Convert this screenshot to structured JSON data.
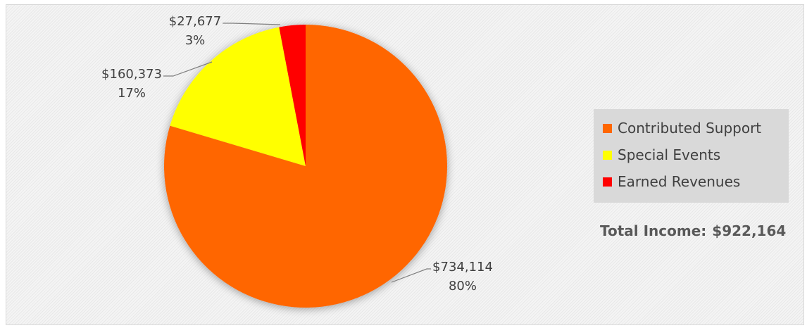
{
  "chart_data": {
    "type": "pie",
    "title": "",
    "categories": [
      "Contributed Support",
      "Special Events",
      "Earned Revenues"
    ],
    "values": [
      734114,
      160373,
      27677
    ],
    "value_labels": [
      "$734,114",
      "$160,373",
      "$27,677"
    ],
    "percent_labels": [
      "80%",
      "17%",
      "3%"
    ],
    "colors": [
      "#ff6600",
      "#ffff00",
      "#ff0000"
    ],
    "legend_position": "right",
    "grid": false
  },
  "legend": {
    "items": [
      {
        "label": "Contributed Support",
        "color": "#ff6600"
      },
      {
        "label": "Special Events",
        "color": "#ffff00"
      },
      {
        "label": "Earned Revenues",
        "color": "#ff0000"
      }
    ]
  },
  "summary": {
    "label": "Total Income:",
    "value": "$922,164"
  }
}
